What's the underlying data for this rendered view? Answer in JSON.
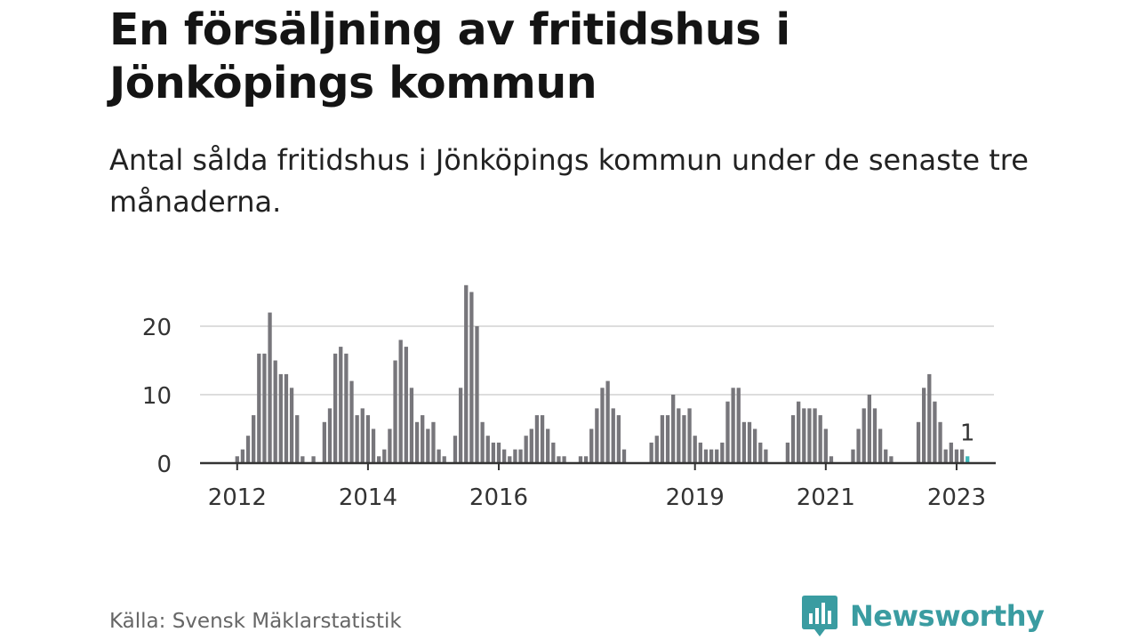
{
  "title": "En försäljning av fritidshus i Jönköpings kommun",
  "subtitle": "Antal sålda fritidshus i Jönköpings kommun under de senaste tre månaderna.",
  "source": "Källa: Svensk Mäklarstatistik",
  "brand": {
    "name": "Newsworthy",
    "icon": "newsworthy-chart-bubble-icon",
    "color": "#3a9ca1"
  },
  "chart_data": {
    "type": "bar",
    "start_month": "2011-07",
    "values": [
      0,
      0,
      0,
      0,
      0,
      0,
      1,
      2,
      4,
      7,
      16,
      16,
      22,
      15,
      13,
      13,
      11,
      7,
      1,
      0,
      1,
      0,
      6,
      8,
      16,
      17,
      16,
      12,
      7,
      8,
      7,
      5,
      1,
      2,
      5,
      15,
      18,
      17,
      11,
      6,
      7,
      5,
      6,
      2,
      1,
      0,
      4,
      11,
      26,
      25,
      20,
      6,
      4,
      3,
      3,
      2,
      1,
      2,
      2,
      4,
      5,
      7,
      7,
      5,
      3,
      1,
      1,
      0,
      0,
      1,
      1,
      5,
      8,
      11,
      12,
      8,
      7,
      2,
      0,
      0,
      0,
      0,
      3,
      4,
      7,
      7,
      10,
      8,
      7,
      8,
      4,
      3,
      2,
      2,
      2,
      3,
      9,
      11,
      11,
      6,
      6,
      5,
      3,
      2,
      0,
      0,
      0,
      3,
      7,
      9,
      8,
      8,
      8,
      7,
      5,
      1,
      0,
      0,
      0,
      2,
      5,
      8,
      10,
      8,
      5,
      2,
      1,
      0,
      0,
      0,
      0,
      6,
      11,
      13,
      9,
      6,
      2,
      3,
      2,
      2,
      1
    ],
    "ylim": [
      0,
      26
    ],
    "yticks": [
      0,
      10,
      20
    ],
    "xticks": [
      {
        "label": "2012",
        "month": "2012-01"
      },
      {
        "label": "2014",
        "month": "2014-01"
      },
      {
        "label": "2016",
        "month": "2016-01"
      },
      {
        "label": "2019",
        "month": "2019-01"
      },
      {
        "label": "2021",
        "month": "2021-01"
      },
      {
        "label": "2023",
        "month": "2023-01"
      }
    ],
    "bar_color": "#77767b",
    "highlight_color": "#3fb6b9",
    "grid": true,
    "annotation": {
      "text": "1",
      "target": "last"
    }
  }
}
